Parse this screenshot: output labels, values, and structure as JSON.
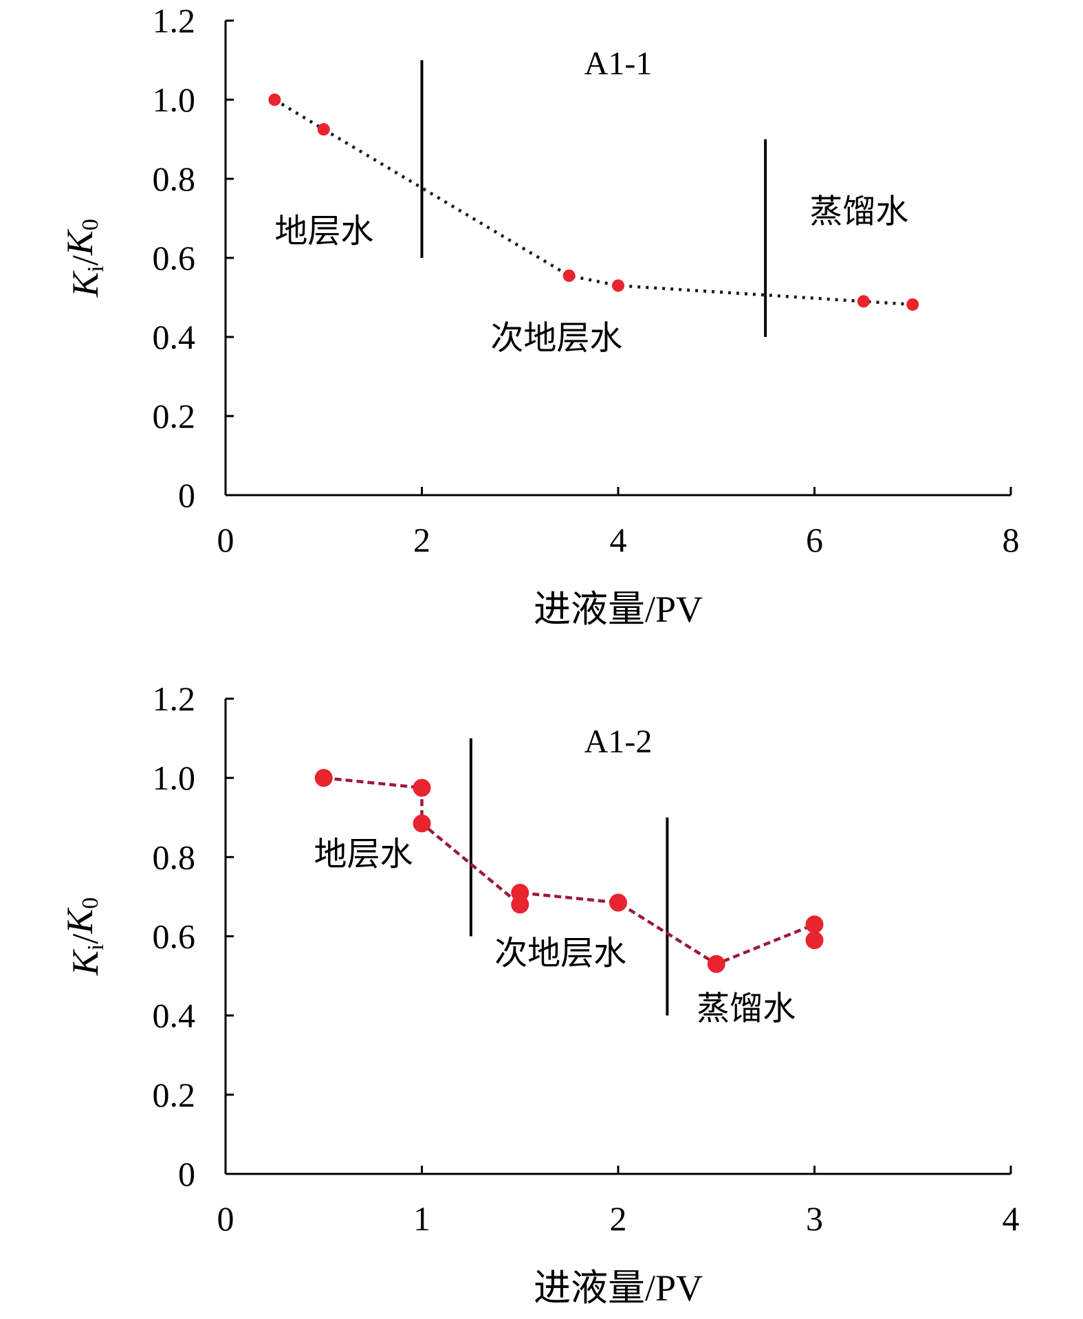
{
  "chart_data": [
    {
      "type": "line",
      "panel_label": "A1-1",
      "xlabel": "进液量/PV",
      "ylabel": {
        "main": "K",
        "sub_i": "i",
        "div": "/",
        "main2": "K",
        "sub_0": "0"
      },
      "xlim": [
        0,
        8
      ],
      "ylim": [
        0,
        1.2
      ],
      "xticks": [
        "0",
        "2",
        "4",
        "6",
        "8"
      ],
      "yticks": [
        "0",
        "0.2",
        "0.4",
        "0.6",
        "0.8",
        "1.0",
        "1.2"
      ],
      "line_color": "#1a1a1a",
      "marker_color": "#e8242e",
      "line_style": "dotted",
      "series": [
        {
          "x": [
            0.5,
            1.0,
            3.5,
            4.0,
            6.5,
            7.0
          ],
          "y": [
            1.0,
            0.925,
            0.555,
            0.53,
            0.49,
            0.482
          ]
        }
      ],
      "boundaries": [
        {
          "x": 2.0,
          "y_range": [
            0.6,
            1.1
          ]
        },
        {
          "x": 5.5,
          "y_range": [
            0.4,
            0.9
          ]
        }
      ],
      "annotations": [
        {
          "text": "地层水",
          "x": 0.5,
          "y": 0.64
        },
        {
          "text": "次地层水",
          "x": 2.7,
          "y": 0.37
        },
        {
          "text": "蒸馏水",
          "x": 5.95,
          "y": 0.69
        }
      ]
    },
    {
      "type": "line",
      "panel_label": "A1-2",
      "xlabel": "进液量/PV",
      "ylabel": {
        "main": "K",
        "sub_i": "i",
        "div": "/",
        "main2": "K",
        "sub_0": "0"
      },
      "xlim": [
        0,
        4
      ],
      "ylim": [
        0,
        1.2
      ],
      "xticks": [
        "0",
        "1",
        "2",
        "3",
        "4"
      ],
      "yticks": [
        "0",
        "0.2",
        "0.4",
        "0.6",
        "0.8",
        "1.0",
        "1.2"
      ],
      "line_color": "#9b1b3a",
      "marker_color": "#e8242e",
      "line_style": "dashed",
      "series": [
        {
          "x": [
            0.5,
            1.0,
            1.0,
            1.5,
            1.5,
            2.0,
            2.5,
            3.0,
            3.0
          ],
          "y": [
            1.0,
            0.885,
            0.975,
            0.68,
            0.71,
            0.685,
            0.53,
            0.59,
            0.63
          ]
        }
      ],
      "path_order": [
        0,
        2,
        1,
        3,
        4,
        5,
        6,
        8,
        7
      ],
      "boundaries": [
        {
          "x": 1.25,
          "y_range": [
            0.6,
            1.1
          ]
        },
        {
          "x": 2.25,
          "y_range": [
            0.4,
            0.9
          ]
        }
      ],
      "annotations": [
        {
          "text": "地层水",
          "x": 0.45,
          "y": 0.78
        },
        {
          "text": "次地层水",
          "x": 1.37,
          "y": 0.53
        },
        {
          "text": "蒸馏水",
          "x": 2.4,
          "y": 0.39
        }
      ]
    }
  ]
}
